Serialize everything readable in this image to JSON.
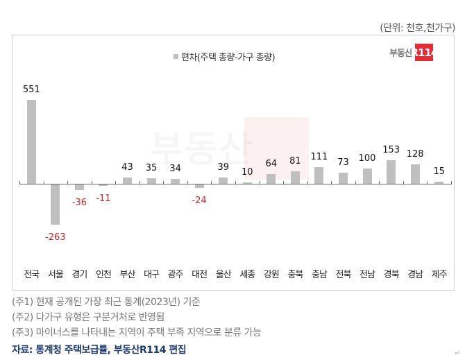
{
  "unit_label": "(단위: 천호,천가구)",
  "legend": {
    "label": "편차(주택 총량-가구 총량)",
    "swatch_color": "#bfbfbf"
  },
  "logo": {
    "text": "부동산",
    "badge": "R114",
    "badge_color": "#e52b35"
  },
  "watermark": {
    "text": "부동산",
    "badge": "R114"
  },
  "chart_data": {
    "type": "bar",
    "title": "",
    "xlabel": "",
    "ylabel": "",
    "legend": [
      "편차(주택 총량-가구 총량)"
    ],
    "legend_position": "top",
    "grid": false,
    "categories": [
      "전국",
      "서울",
      "경기",
      "인천",
      "부산",
      "대구",
      "광주",
      "대전",
      "울산",
      "세종",
      "강원",
      "충북",
      "충남",
      "전북",
      "전남",
      "경북",
      "경남",
      "제주"
    ],
    "series": [
      {
        "name": "편차(주택 총량-가구 총량)",
        "values": [
          551,
          -263,
          -36,
          -11,
          43,
          35,
          34,
          -24,
          39,
          10,
          64,
          81,
          111,
          73,
          100,
          153,
          128,
          15
        ],
        "color": "#bfbfbf"
      }
    ],
    "ylim": [
      -300,
      600
    ],
    "positive_label_color": "#111111",
    "negative_label_color": "#c0282d",
    "unit": "천호,천가구"
  },
  "notes": [
    "(주1) 현재 공개된 가장 최근 통계(2023년) 기준",
    "(주2) 다가구 유형은 구분거처로 반영됨",
    "(주3) 마이너스를 나타내는 지역이 주택 부족 지역으로 분류 가능"
  ],
  "source": "자료: 통계청 주택보급률, 부동산R114 편집",
  "paragraph_mark": "↵"
}
